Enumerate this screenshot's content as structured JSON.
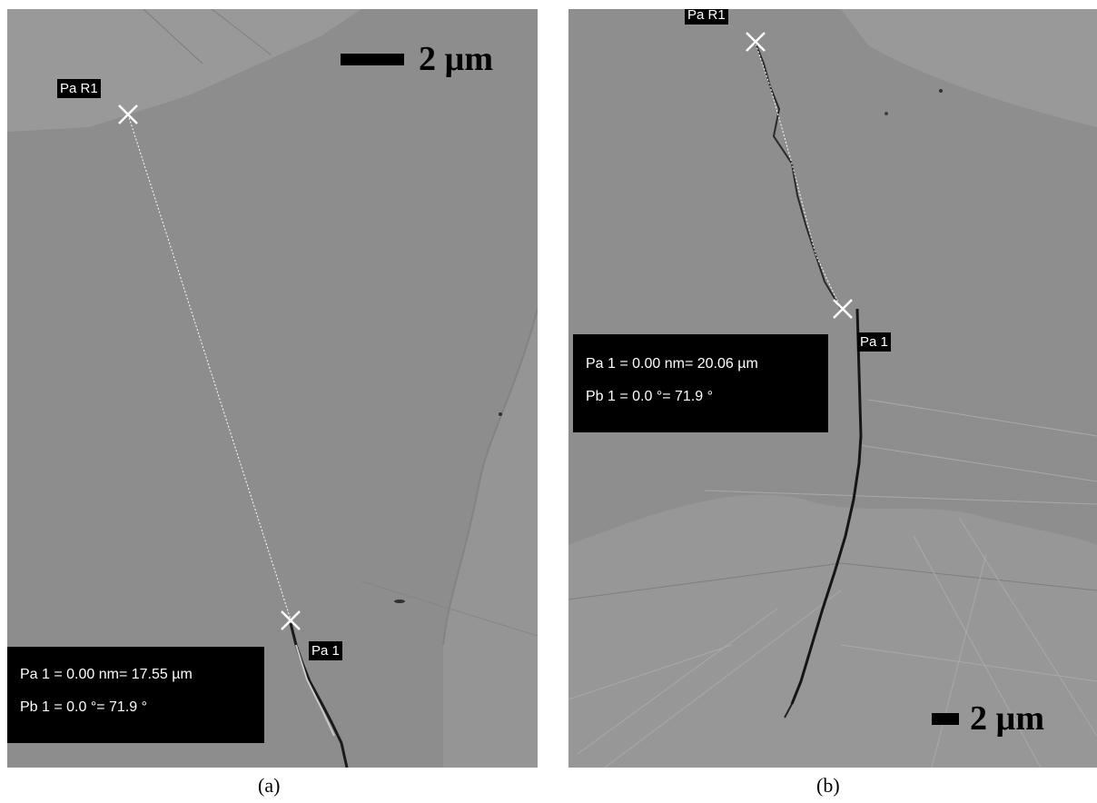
{
  "figure": {
    "panel_a": {
      "label_start": "Pa R1",
      "label_end": "Pa 1",
      "measurement_line1": "Pa 1 = 0.00 nm= 17.55 µm",
      "measurement_line2": "Pb 1 =   0.0 °=  71.9 °",
      "scalebar_text": "2 µm",
      "caption": "(a)"
    },
    "panel_b": {
      "label_start": "Pa R1",
      "label_end": "Pa 1",
      "measurement_line1": "Pa 1 = 0.00 nm= 20.06 µm",
      "measurement_line2": "Pb 1 =   0.0 °=  71.9 °",
      "scalebar_text": "2 µm",
      "caption": "(b)"
    }
  },
  "colors": {
    "micrograph_gray": "#8c8c8c",
    "label_background": "#000000",
    "label_text": "#ffffff"
  },
  "icons": [
    "measurement-cross-icon"
  ]
}
